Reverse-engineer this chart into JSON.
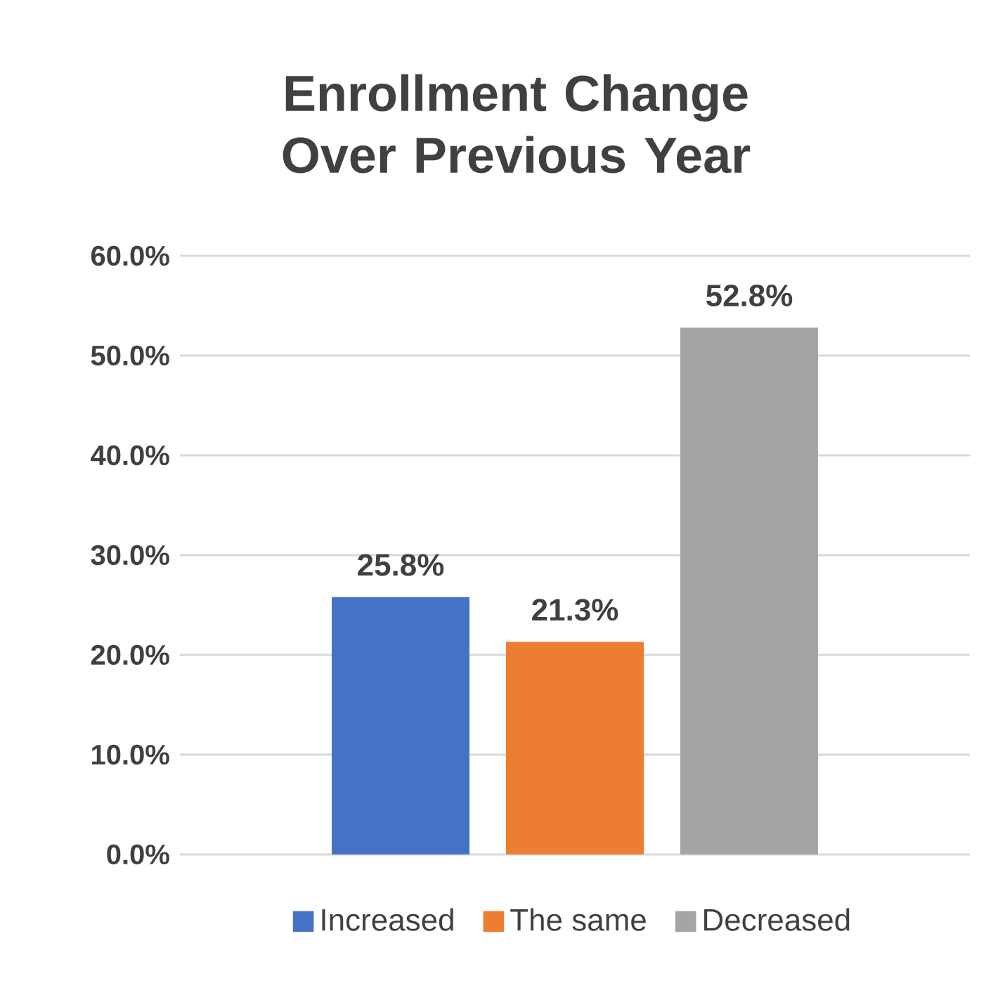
{
  "chart_data": {
    "type": "bar",
    "title": "Enrollment Change Over Previous Year",
    "categories": [
      null
    ],
    "series": [
      {
        "name": "Increased",
        "color": "#4472c4",
        "values": [
          25.8
        ],
        "value_labels": [
          "25.8%"
        ]
      },
      {
        "name": "The same",
        "color": "#ed7d31",
        "values": [
          21.3
        ],
        "value_labels": [
          "21.3%"
        ]
      },
      {
        "name": "Decreased",
        "color": "#a5a5a5",
        "values": [
          52.8
        ],
        "value_labels": [
          "52.8%"
        ]
      }
    ],
    "ylim": [
      0,
      60
    ],
    "yticks": [
      {
        "value": 0,
        "label": "0.0%"
      },
      {
        "value": 10,
        "label": "10.0%"
      },
      {
        "value": 20,
        "label": "20.0%"
      },
      {
        "value": 30,
        "label": "30.0%"
      },
      {
        "value": 40,
        "label": "40.0%"
      },
      {
        "value": 50,
        "label": "50.0%"
      },
      {
        "value": 60,
        "label": "60.0%"
      }
    ],
    "grid": "y",
    "legend": "bottom"
  }
}
